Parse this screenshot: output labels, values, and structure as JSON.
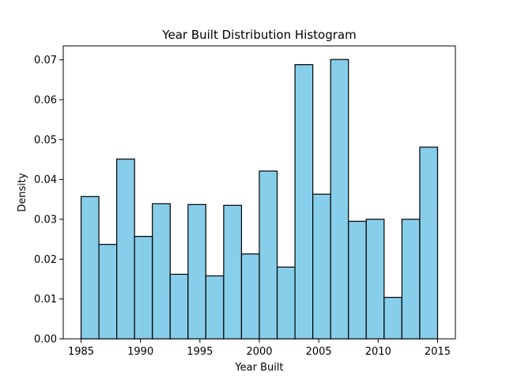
{
  "chart_data": {
    "type": "bar",
    "title": "Year Built Distribution Histogram",
    "xlabel": "Year Built",
    "ylabel": "Density",
    "xlim": [
      1983.5,
      2016.5
    ],
    "ylim": [
      0,
      0.0735
    ],
    "xticks": [
      1985,
      1990,
      1995,
      2000,
      2005,
      2010,
      2015
    ],
    "yticks": [
      "0.00",
      "0.01",
      "0.02",
      "0.03",
      "0.04",
      "0.05",
      "0.06",
      "0.07"
    ],
    "bin_start": 1985,
    "bin_width": 1.5,
    "values": [
      0.0357,
      0.0237,
      0.0451,
      0.0257,
      0.0339,
      0.0162,
      0.0337,
      0.0158,
      0.0335,
      0.0213,
      0.0421,
      0.018,
      0.0688,
      0.0363,
      0.0701,
      0.0295,
      0.03,
      0.0104,
      0.03,
      0.0481
    ],
    "bar_color": "#87CEEB",
    "edge_color": "#000000",
    "grid": false
  }
}
